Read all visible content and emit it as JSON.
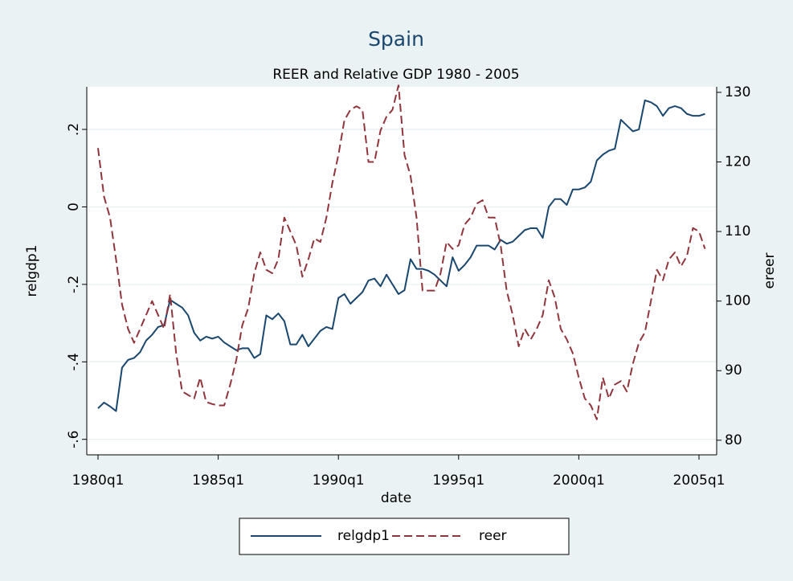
{
  "chart_data": {
    "type": "line",
    "title": "Spain",
    "subtitle": "REER and Relative GDP 1980 - 2005",
    "xlabel": "date",
    "ylabel": "relgdp1",
    "y2label": "ereer",
    "x": [
      "1980q1",
      "1980q2",
      "1980q3",
      "1980q4",
      "1981q1",
      "1981q2",
      "1981q3",
      "1981q4",
      "1982q1",
      "1982q2",
      "1982q3",
      "1982q4",
      "1983q1",
      "1983q2",
      "1983q3",
      "1983q4",
      "1984q1",
      "1984q2",
      "1984q3",
      "1984q4",
      "1985q1",
      "1985q2",
      "1985q3",
      "1985q4",
      "1986q1",
      "1986q2",
      "1986q3",
      "1986q4",
      "1987q1",
      "1987q2",
      "1987q3",
      "1987q4",
      "1988q1",
      "1988q2",
      "1988q3",
      "1988q4",
      "1989q1",
      "1989q2",
      "1989q3",
      "1989q4",
      "1990q1",
      "1990q2",
      "1990q3",
      "1990q4",
      "1991q1",
      "1991q2",
      "1991q3",
      "1991q4",
      "1992q1",
      "1992q2",
      "1992q3",
      "1992q4",
      "1993q1",
      "1993q2",
      "1993q3",
      "1993q4",
      "1994q1",
      "1994q2",
      "1994q3",
      "1994q4",
      "1995q1",
      "1995q2",
      "1995q3",
      "1995q4",
      "1996q1",
      "1996q2",
      "1996q3",
      "1996q4",
      "1997q1",
      "1997q2",
      "1997q3",
      "1997q4",
      "1998q1",
      "1998q2",
      "1998q3",
      "1998q4",
      "1999q1",
      "1999q2",
      "1999q3",
      "1999q4",
      "2000q1",
      "2000q2",
      "2000q3",
      "2000q4",
      "2001q1",
      "2001q2",
      "2001q3",
      "2001q4",
      "2002q1",
      "2002q2",
      "2002q3",
      "2002q4",
      "2003q1",
      "2003q2",
      "2003q3",
      "2003q4",
      "2004q1",
      "2004q2",
      "2004q3",
      "2004q4",
      "2005q1",
      "2005q2"
    ],
    "xticks": [
      "1980q1",
      "1985q1",
      "1990q1",
      "1995q1",
      "2000q1",
      "2005q1"
    ],
    "series": [
      {
        "name": "relgdp1",
        "color": "#1a476f",
        "style": "solid",
        "values": [
          -0.52,
          -0.505,
          -0.515,
          -0.527,
          -0.415,
          -0.395,
          -0.39,
          -0.375,
          -0.345,
          -0.33,
          -0.31,
          -0.305,
          -0.24,
          -0.25,
          -0.26,
          -0.28,
          -0.325,
          -0.345,
          -0.335,
          -0.34,
          -0.335,
          -0.35,
          -0.36,
          -0.37,
          -0.365,
          -0.365,
          -0.39,
          -0.38,
          -0.28,
          -0.29,
          -0.275,
          -0.295,
          -0.355,
          -0.355,
          -0.33,
          -0.36,
          -0.34,
          -0.32,
          -0.31,
          -0.315,
          -0.235,
          -0.225,
          -0.25,
          -0.235,
          -0.22,
          -0.19,
          -0.185,
          -0.205,
          -0.175,
          -0.2,
          -0.225,
          -0.215,
          -0.135,
          -0.16,
          -0.16,
          -0.165,
          -0.175,
          -0.19,
          -0.205,
          -0.13,
          -0.165,
          -0.15,
          -0.13,
          -0.1,
          -0.1,
          -0.1,
          -0.11,
          -0.085,
          -0.095,
          -0.09,
          -0.075,
          -0.06,
          -0.055,
          -0.055,
          -0.08,
          0,
          0.02,
          0.02,
          0.005,
          0.045,
          0.045,
          0.05,
          0.065,
          0.12,
          0.135,
          0.145,
          0.15,
          0.225,
          0.21,
          0.195,
          0.2,
          0.275,
          0.27,
          0.26,
          0.235,
          0.255,
          0.26,
          0.255,
          0.24,
          0.235,
          0.235,
          0.24
        ]
      },
      {
        "name": "reer",
        "color": "#90353b",
        "style": "dashed",
        "axis": "y2",
        "values": [
          122,
          115,
          112,
          106,
          99.5,
          96,
          94,
          96,
          98,
          100,
          98,
          96,
          101,
          92.5,
          87,
          86.5,
          86,
          89,
          85.5,
          85.2,
          85,
          85,
          88,
          91.5,
          96.5,
          99,
          104,
          107,
          104.5,
          104,
          106,
          112,
          110,
          108,
          103.5,
          106,
          109,
          108.5,
          112,
          117,
          121,
          126,
          127.5,
          128,
          127.5,
          120,
          120,
          124.5,
          126.5,
          127.5,
          131,
          121,
          118,
          112,
          101.5,
          101.5,
          101.5,
          104,
          108.5,
          107.5,
          108,
          111,
          112,
          114,
          114.5,
          112,
          112,
          108,
          101.5,
          98,
          93.5,
          96,
          94.5,
          96,
          98,
          103,
          100.5,
          96,
          94.5,
          92.5,
          89,
          86,
          85,
          83,
          89,
          86,
          88,
          88.5,
          87,
          91,
          94,
          95.5,
          100,
          104.5,
          103,
          106,
          107,
          105,
          106.5,
          110.5,
          110,
          107.5
        ]
      }
    ],
    "ylim": [
      -0.64,
      0.31
    ],
    "yticks": [
      {
        "value": -0.6,
        "label": "-.6"
      },
      {
        "value": -0.4,
        "label": "-.4"
      },
      {
        "value": -0.2,
        "label": "-.2"
      },
      0,
      {
        "value": 0.2,
        "label": ".2"
      }
    ],
    "y2lim": [
      77.9,
      130.8
    ],
    "y2ticks": [
      80,
      90,
      100,
      110,
      120,
      130
    ],
    "grid": true,
    "legend": "bottom"
  }
}
